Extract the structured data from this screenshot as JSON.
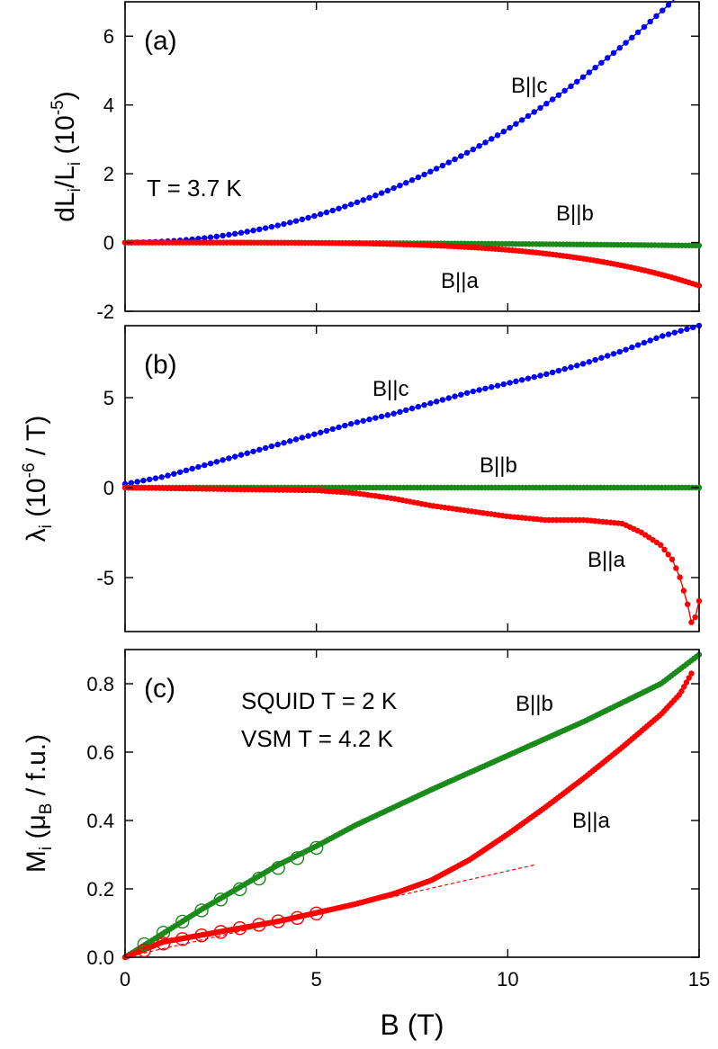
{
  "colors": {
    "c_axis": "#0000ff",
    "b_axis": "#1a8a1a",
    "a_axis": "#ff0000",
    "fit_line": "#ff0000"
  },
  "xlabel": "B (T)",
  "x_ticks": [
    "0",
    "5",
    "10",
    "15"
  ],
  "chart_data": [
    {
      "type": "scatter",
      "panel": "(a)",
      "ylabel": {
        "main": "dL",
        "sub1": "i",
        "mid": "/L",
        "sub2": "i",
        "paren": " (10",
        "sup": "-5",
        "end": ")"
      },
      "annotations": [
        "T = 3.7 K"
      ],
      "xlim": [
        0,
        15
      ],
      "ylim": [
        -2,
        7
      ],
      "y_ticks": [
        "-2",
        "0",
        "2",
        "4",
        "6"
      ],
      "series": [
        {
          "name": "B||c",
          "color_key": "c_axis",
          "point_style": "filled",
          "fn": "poly",
          "coef": [
            0,
            0,
            0.03,
            0.0003
          ],
          "xrange": [
            0,
            15
          ],
          "n": 95,
          "connect": true
        },
        {
          "name": "B||b",
          "color_key": "b_axis",
          "point_style": "filled",
          "fn": "poly",
          "coef": [
            0,
            0,
            -0.0004,
            0
          ],
          "xrange": [
            0,
            15
          ],
          "n": 170,
          "connect": true
        },
        {
          "name": "B||a",
          "color_key": "a_axis",
          "point_style": "filled",
          "fn": "poly",
          "coef": [
            0,
            0,
            0,
            0,
            -1.5e-05,
            -6.55e-07
          ],
          "xrange": [
            0,
            15
          ],
          "n": 170,
          "connect": true
        }
      ]
    },
    {
      "type": "scatter",
      "panel": "(b)",
      "ylabel": {
        "main": "λ",
        "sub1": "i",
        "mid": " (10",
        "sup": "-6",
        "end": " / T)"
      },
      "annotations": [],
      "xlim": [
        0,
        15
      ],
      "ylim": [
        -8,
        9
      ],
      "y_ticks": [
        "-5",
        "0",
        "5"
      ],
      "series": [
        {
          "name": "B||c",
          "color_key": "c_axis",
          "point_style": "filled",
          "fn": "interp",
          "x": [
            0,
            1,
            2,
            3,
            4,
            5,
            6,
            7,
            8,
            9,
            10,
            11,
            12,
            13,
            14,
            15
          ],
          "y": [
            0.2,
            0.6,
            1.2,
            1.8,
            2.4,
            3.0,
            3.6,
            4.1,
            4.7,
            5.3,
            5.8,
            6.3,
            6.9,
            7.6,
            8.4,
            9.0
          ],
          "xrange": [
            0,
            15
          ],
          "n": 95,
          "connect": true
        },
        {
          "name": "B||b",
          "color_key": "b_axis",
          "point_style": "filled",
          "fn": "interp",
          "x": [
            0,
            15
          ],
          "y": [
            0.0,
            0.0
          ],
          "xrange": [
            0,
            15
          ],
          "n": 170,
          "connect": true
        },
        {
          "name": "B||a",
          "color_key": "a_axis",
          "point_style": "filled",
          "fn": "interp",
          "x": [
            0,
            3,
            5,
            6,
            7,
            8,
            9,
            10,
            11,
            12,
            13,
            13.5,
            14,
            14.3,
            14.5,
            14.7,
            14.8,
            14.9,
            15.0
          ],
          "y": [
            0.0,
            -0.1,
            -0.15,
            -0.3,
            -0.6,
            -1.0,
            -1.3,
            -1.6,
            -1.8,
            -1.8,
            -2.0,
            -2.5,
            -3.2,
            -4.0,
            -5.0,
            -6.5,
            -7.5,
            -7.2,
            -6.3
          ],
          "xrange": [
            0,
            15
          ],
          "n": 150,
          "connect": true
        }
      ]
    },
    {
      "type": "scatter",
      "panel": "(c)",
      "ylabel": {
        "main": "M",
        "sub1": "i",
        "mid": " (μ",
        "sub2": "B",
        "end": " / f.u.)"
      },
      "annotations": [
        "SQUID T = 2 K",
        "VSM T = 4.2 K"
      ],
      "xlim": [
        0,
        15
      ],
      "ylim": [
        0,
        0.9
      ],
      "y_ticks": [
        "0.0",
        "0.2",
        "0.4",
        "0.6",
        "0.8"
      ],
      "series": [
        {
          "name": "B||b",
          "color_key": "b_axis",
          "point_style": "filled",
          "fn": "interp",
          "x": [
            0,
            2,
            4,
            5,
            6,
            8,
            10,
            12,
            14,
            15
          ],
          "y": [
            0.0,
            0.14,
            0.27,
            0.325,
            0.385,
            0.49,
            0.59,
            0.69,
            0.8,
            0.885
          ],
          "xrange": [
            0,
            15
          ],
          "n": 230,
          "connect": true
        },
        {
          "name": "B||a",
          "color_key": "a_axis",
          "point_style": "filled",
          "fn": "interp",
          "x": [
            0,
            1,
            2,
            3,
            4,
            5,
            6,
            7,
            8,
            9,
            10,
            11,
            12,
            13,
            14,
            14.5,
            14.8
          ],
          "y": [
            0.0,
            0.045,
            0.065,
            0.085,
            0.105,
            0.13,
            0.155,
            0.185,
            0.225,
            0.285,
            0.36,
            0.44,
            0.525,
            0.615,
            0.71,
            0.77,
            0.83
          ],
          "xrange": [
            0,
            14.8
          ],
          "n": 230,
          "connect": true
        },
        {
          "name": "SQUID B||b",
          "color_key": "b_axis",
          "point_style": "open",
          "x": [
            0.5,
            1,
            1.5,
            2,
            2.5,
            3,
            3.5,
            4,
            4.5,
            5
          ],
          "y": [
            0.038,
            0.072,
            0.104,
            0.137,
            0.169,
            0.199,
            0.23,
            0.261,
            0.29,
            0.32
          ],
          "connect": false
        },
        {
          "name": "SQUID B||a",
          "color_key": "a_axis",
          "point_style": "open",
          "x": [
            0.5,
            1,
            1.5,
            2,
            2.5,
            3,
            3.5,
            4,
            4.5,
            5
          ],
          "y": [
            0.02,
            0.04,
            0.053,
            0.064,
            0.074,
            0.085,
            0.095,
            0.105,
            0.115,
            0.128
          ],
          "connect": false
        },
        {
          "name": "linear fit",
          "color_key": "fit_line",
          "point_style": "dashed",
          "x": [
            0,
            10.7
          ],
          "y": [
            0.0,
            0.27
          ],
          "connect": true
        }
      ]
    }
  ],
  "series_labels": [
    {
      "panel": 0,
      "text": "B||c"
    },
    {
      "panel": 0,
      "text": "B||b"
    },
    {
      "panel": 0,
      "text": "B||a"
    },
    {
      "panel": 1,
      "text": "B||c"
    },
    {
      "panel": 1,
      "text": "B||b"
    },
    {
      "panel": 1,
      "text": "B||a"
    },
    {
      "panel": 2,
      "text": "B||b"
    },
    {
      "panel": 2,
      "text": "B||a"
    }
  ]
}
